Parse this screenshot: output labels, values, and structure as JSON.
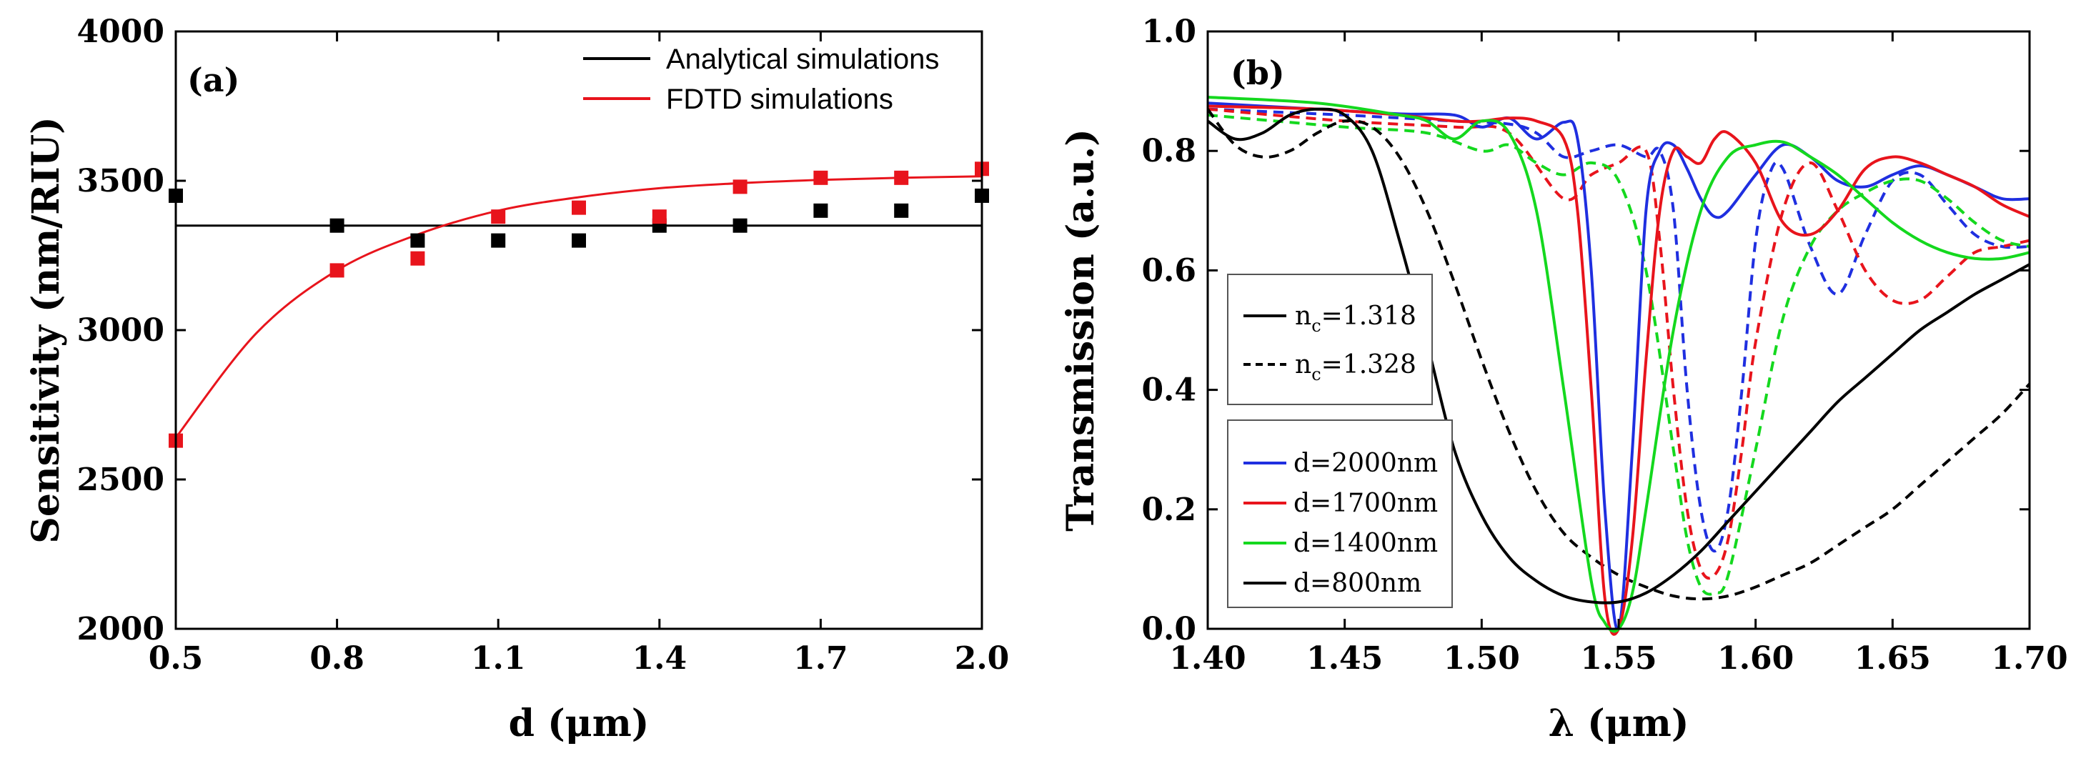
{
  "panels": {
    "a": {
      "label": "(a)",
      "xlabel": "d (μm)",
      "ylabel": "Sensitivity (nm/RIU)"
    },
    "b": {
      "label": "(b)",
      "xlabel": "λ (μm)",
      "ylabel": "Transmission (a.u.)",
      "legend1": [
        {
          "sym": "n",
          "sub": "c",
          "val": "=1.318"
        },
        {
          "sym": "n",
          "sub": "c",
          "val": "=1.328"
        }
      ]
    }
  },
  "chart_data": [
    {
      "type": "scatter",
      "panel": "a",
      "xlabel": "d (μm)",
      "ylabel": "Sensitivity (nm/RIU)",
      "xlim": [
        0.5,
        2.0
      ],
      "ylim": [
        2000,
        4000
      ],
      "xticks": [
        "0.5",
        "0.8",
        "1.1",
        "1.4",
        "1.7",
        "2.0"
      ],
      "xtick_values": [
        0.5,
        0.8,
        1.1,
        1.4,
        1.7,
        2.0
      ],
      "yticks": [
        "2000",
        "2500",
        "3000",
        "3500",
        "4000"
      ],
      "ytick_values": [
        2000,
        2500,
        3000,
        3500,
        4000
      ],
      "legend_position": "top-right",
      "series": [
        {
          "name": "Analytical simulations",
          "color": "#000000",
          "x": [
            0.5,
            0.8,
            0.95,
            1.1,
            1.25,
            1.4,
            1.55,
            1.7,
            1.85,
            2.0
          ],
          "y": [
            3450,
            3350,
            3300,
            3300,
            3300,
            3350,
            3350,
            3400,
            3400,
            3450
          ],
          "fit": {
            "form": "constant",
            "value": 3350
          }
        },
        {
          "name": "FDTD simulations",
          "color": "#e8141c",
          "x": [
            0.5,
            0.8,
            0.95,
            1.1,
            1.25,
            1.4,
            1.55,
            1.7,
            1.85,
            2.0
          ],
          "y": [
            2630,
            3200,
            3240,
            3380,
            3410,
            3380,
            3480,
            3510,
            3510,
            3540
          ],
          "fit": {
            "form": "exponential",
            "x": [
              0.5,
              0.65,
              0.8,
              0.95,
              1.1,
              1.25,
              1.4,
              1.55,
              1.7,
              1.85,
              2.0
            ],
            "y": [
              2640,
              2990,
              3200,
              3320,
              3400,
              3445,
              3475,
              3492,
              3503,
              3510,
              3515
            ]
          }
        }
      ]
    },
    {
      "type": "line",
      "panel": "b",
      "xlabel": "λ (μm)",
      "ylabel": "Transmission (a.u.)",
      "xlim": [
        1.4,
        1.7
      ],
      "ylim": [
        0.0,
        1.0
      ],
      "xticks": [
        "1.40",
        "1.45",
        "1.50",
        "1.55",
        "1.60",
        "1.65",
        "1.70"
      ],
      "xtick_values": [
        1.4,
        1.45,
        1.5,
        1.55,
        1.6,
        1.65,
        1.7
      ],
      "yticks": [
        "0.0",
        "0.2",
        "0.4",
        "0.6",
        "0.8",
        "1.0"
      ],
      "ytick_values": [
        0.0,
        0.2,
        0.4,
        0.6,
        0.8,
        1.0
      ],
      "legend_style_position": "middle-left",
      "legend_color_position": "lower-left",
      "style_legend": [
        {
          "name": "n_c=1.318",
          "dash": "solid"
        },
        {
          "name": "n_c=1.328",
          "dash": "dashed"
        }
      ],
      "series": [
        {
          "name": "d=2000nm",
          "color": "#1f2fe0",
          "dash": "solid",
          "x": [
            1.4,
            1.44,
            1.47,
            1.49,
            1.5,
            1.51,
            1.52,
            1.53,
            1.535,
            1.54,
            1.545,
            1.55,
            1.555,
            1.56,
            1.565,
            1.57,
            1.575,
            1.58,
            1.585,
            1.59,
            1.6,
            1.61,
            1.62,
            1.63,
            1.64,
            1.65,
            1.66,
            1.67,
            1.68,
            1.69,
            1.7
          ],
          "y": [
            0.88,
            0.87,
            0.862,
            0.86,
            0.84,
            0.855,
            0.82,
            0.848,
            0.82,
            0.6,
            0.2,
            0.0,
            0.3,
            0.7,
            0.8,
            0.81,
            0.77,
            0.72,
            0.69,
            0.7,
            0.76,
            0.81,
            0.79,
            0.75,
            0.74,
            0.76,
            0.775,
            0.76,
            0.74,
            0.72,
            0.72
          ]
        },
        {
          "name": "d=1700nm",
          "color": "#e8141c",
          "dash": "solid",
          "x": [
            1.4,
            1.44,
            1.47,
            1.49,
            1.5,
            1.51,
            1.52,
            1.53,
            1.535,
            1.54,
            1.545,
            1.55,
            1.555,
            1.56,
            1.565,
            1.57,
            1.575,
            1.58,
            1.585,
            1.59,
            1.6,
            1.61,
            1.62,
            1.63,
            1.64,
            1.65,
            1.66,
            1.67,
            1.68,
            1.69,
            1.7
          ],
          "y": [
            0.875,
            0.87,
            0.86,
            0.85,
            0.85,
            0.855,
            0.85,
            0.82,
            0.7,
            0.4,
            0.05,
            0.0,
            0.15,
            0.45,
            0.7,
            0.8,
            0.79,
            0.78,
            0.82,
            0.83,
            0.78,
            0.68,
            0.66,
            0.7,
            0.77,
            0.79,
            0.78,
            0.76,
            0.74,
            0.71,
            0.69
          ]
        },
        {
          "name": "d=1400nm",
          "color": "#14d81e",
          "dash": "solid",
          "x": [
            1.4,
            1.44,
            1.47,
            1.48,
            1.49,
            1.5,
            1.51,
            1.52,
            1.53,
            1.54,
            1.545,
            1.55,
            1.555,
            1.56,
            1.57,
            1.58,
            1.59,
            1.6,
            1.61,
            1.62,
            1.63,
            1.64,
            1.65,
            1.66,
            1.67,
            1.68,
            1.69,
            1.7
          ],
          "y": [
            0.89,
            0.88,
            0.86,
            0.85,
            0.82,
            0.85,
            0.83,
            0.7,
            0.4,
            0.08,
            0.01,
            0.0,
            0.06,
            0.2,
            0.5,
            0.7,
            0.79,
            0.81,
            0.815,
            0.79,
            0.76,
            0.72,
            0.68,
            0.65,
            0.63,
            0.62,
            0.62,
            0.63
          ]
        },
        {
          "name": "d=800nm",
          "color": "#000000",
          "dash": "solid",
          "x": [
            1.4,
            1.41,
            1.42,
            1.43,
            1.44,
            1.45,
            1.46,
            1.47,
            1.48,
            1.49,
            1.5,
            1.51,
            1.52,
            1.53,
            1.54,
            1.55,
            1.56,
            1.57,
            1.58,
            1.59,
            1.6,
            1.61,
            1.62,
            1.63,
            1.64,
            1.65,
            1.66,
            1.67,
            1.68,
            1.69,
            1.7
          ],
          "y": [
            0.85,
            0.82,
            0.83,
            0.86,
            0.87,
            0.86,
            0.8,
            0.65,
            0.48,
            0.3,
            0.19,
            0.12,
            0.08,
            0.055,
            0.045,
            0.045,
            0.06,
            0.09,
            0.13,
            0.18,
            0.23,
            0.28,
            0.33,
            0.38,
            0.42,
            0.46,
            0.5,
            0.53,
            0.56,
            0.585,
            0.61
          ]
        },
        {
          "name": "d=2000nm (n_c=1.328)",
          "color": "#1f2fe0",
          "dash": "dashed",
          "x": [
            1.4,
            1.45,
            1.49,
            1.51,
            1.52,
            1.53,
            1.54,
            1.55,
            1.56,
            1.565,
            1.57,
            1.575,
            1.58,
            1.585,
            1.59,
            1.595,
            1.6,
            1.605,
            1.61,
            1.62,
            1.63,
            1.64,
            1.65,
            1.66,
            1.67,
            1.68,
            1.69,
            1.7
          ],
          "y": [
            0.87,
            0.86,
            0.85,
            0.845,
            0.83,
            0.79,
            0.8,
            0.81,
            0.79,
            0.8,
            0.7,
            0.4,
            0.2,
            0.13,
            0.2,
            0.4,
            0.65,
            0.76,
            0.77,
            0.64,
            0.56,
            0.66,
            0.75,
            0.76,
            0.71,
            0.66,
            0.64,
            0.64
          ]
        },
        {
          "name": "d=1700nm (n_c=1.328)",
          "color": "#e8141c",
          "dash": "dashed",
          "x": [
            1.4,
            1.45,
            1.49,
            1.51,
            1.53,
            1.54,
            1.55,
            1.56,
            1.565,
            1.57,
            1.575,
            1.58,
            1.585,
            1.59,
            1.595,
            1.6,
            1.61,
            1.62,
            1.63,
            1.64,
            1.65,
            1.66,
            1.67,
            1.68,
            1.69,
            1.7
          ],
          "y": [
            0.87,
            0.85,
            0.84,
            0.83,
            0.72,
            0.76,
            0.78,
            0.8,
            0.65,
            0.4,
            0.2,
            0.1,
            0.09,
            0.15,
            0.3,
            0.48,
            0.7,
            0.78,
            0.7,
            0.6,
            0.55,
            0.55,
            0.59,
            0.63,
            0.64,
            0.65
          ]
        },
        {
          "name": "d=1400nm (n_c=1.328)",
          "color": "#14d81e",
          "dash": "dashed",
          "x": [
            1.4,
            1.45,
            1.48,
            1.5,
            1.51,
            1.52,
            1.53,
            1.54,
            1.55,
            1.56,
            1.57,
            1.575,
            1.58,
            1.585,
            1.59,
            1.6,
            1.61,
            1.62,
            1.63,
            1.64,
            1.65,
            1.66,
            1.67,
            1.68,
            1.69,
            1.7
          ],
          "y": [
            0.86,
            0.84,
            0.83,
            0.8,
            0.81,
            0.78,
            0.76,
            0.78,
            0.75,
            0.6,
            0.3,
            0.15,
            0.07,
            0.06,
            0.09,
            0.3,
            0.52,
            0.64,
            0.7,
            0.73,
            0.75,
            0.75,
            0.72,
            0.68,
            0.65,
            0.64
          ]
        },
        {
          "name": "d=800nm (n_c=1.328)",
          "color": "#000000",
          "dash": "dashed",
          "x": [
            1.4,
            1.41,
            1.42,
            1.43,
            1.44,
            1.45,
            1.46,
            1.47,
            1.48,
            1.49,
            1.5,
            1.51,
            1.52,
            1.53,
            1.54,
            1.55,
            1.56,
            1.57,
            1.58,
            1.59,
            1.6,
            1.61,
            1.62,
            1.63,
            1.64,
            1.65,
            1.66,
            1.67,
            1.68,
            1.69,
            1.7
          ],
          "y": [
            0.87,
            0.81,
            0.79,
            0.8,
            0.83,
            0.85,
            0.84,
            0.79,
            0.7,
            0.58,
            0.45,
            0.33,
            0.23,
            0.16,
            0.12,
            0.09,
            0.07,
            0.055,
            0.05,
            0.055,
            0.07,
            0.09,
            0.11,
            0.14,
            0.17,
            0.2,
            0.24,
            0.28,
            0.32,
            0.36,
            0.41
          ]
        }
      ],
      "color_legend_order": [
        "d=2000nm",
        "d=1700nm",
        "d=1400nm",
        "d=800nm"
      ]
    }
  ]
}
